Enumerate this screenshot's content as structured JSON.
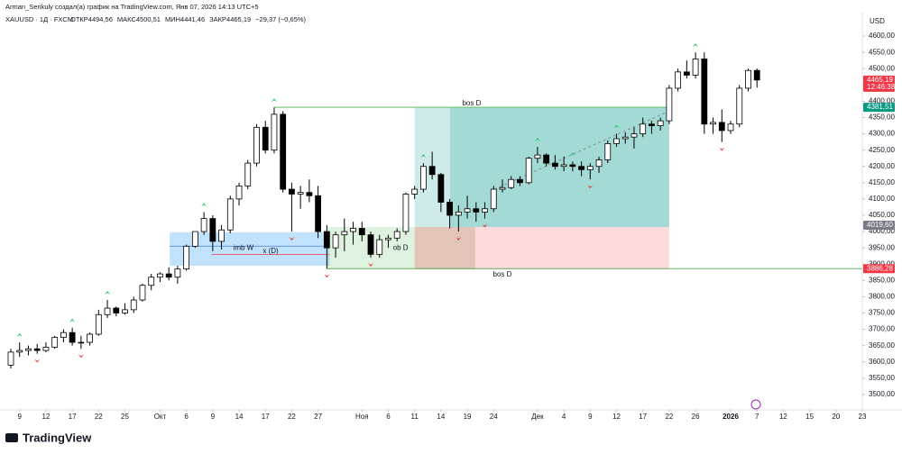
{
  "chart_data": {
    "type": "candlestick",
    "author_line": "Arman_Serikuly создал(а) график на TradingView.com, Янв 07, 2026 14:13 UTC+5",
    "symbol_line": "XAUUSD · 1Д · FXCM",
    "ohlc_line": [
      "ОТКР4494,56",
      "МАКС4500,51",
      "МИН4441,46",
      "ЗАКР4465,19",
      "−29,37 (−0,65%)"
    ],
    "currency": "USD",
    "brand": "TradingView",
    "open": [
      3590,
      3630,
      3635,
      3640,
      3635,
      3645,
      3675,
      3690,
      3660,
      3660,
      3685,
      3745,
      3765,
      3750,
      3760,
      3790,
      3835,
      3860,
      3870,
      3860,
      3885,
      3955,
      4000,
      4040,
      3970,
      4005,
      4100,
      4140,
      4210,
      4320,
      4250,
      4360,
      4130,
      4115,
      4120,
      4110,
      4000,
      3950,
      3990,
      4000,
      4010,
      3990,
      3930,
      3975,
      3980,
      4000,
      4115,
      4130,
      4200,
      4175,
      4090,
      4050,
      4060,
      4070,
      4060,
      4070,
      4130,
      4135,
      4160,
      4150,
      4225,
      4235,
      4210,
      4200,
      4205,
      4200,
      4190,
      4200,
      4220,
      4270,
      4285,
      4290,
      4300,
      4330,
      4325,
      4340,
      4440,
      4490,
      4480,
      4530,
      4330,
      4335,
      4310,
      4330,
      4440,
      4494.56
    ],
    "high": [
      3640,
      3660,
      3650,
      3655,
      3660,
      3680,
      3700,
      3705,
      3680,
      3690,
      3760,
      3790,
      3770,
      3780,
      3800,
      3840,
      3870,
      3875,
      3890,
      3895,
      3960,
      4000,
      4060,
      4050,
      4020,
      4110,
      4150,
      4220,
      4330,
      4340,
      4381,
      4370,
      4150,
      4140,
      4160,
      4140,
      4020,
      4000,
      4040,
      4030,
      4030,
      4000,
      3990,
      3990,
      4010,
      4120,
      4140,
      4210,
      4245,
      4180,
      4100,
      4080,
      4110,
      4090,
      4090,
      4140,
      4160,
      4170,
      4170,
      4230,
      4260,
      4240,
      4235,
      4230,
      4215,
      4215,
      4210,
      4230,
      4280,
      4300,
      4305,
      4320,
      4350,
      4340,
      4350,
      4450,
      4500,
      4525,
      4550,
      4550,
      4350,
      4375,
      4340,
      4450,
      4500,
      4500.51
    ],
    "low": [
      3580,
      3615,
      3620,
      3625,
      3630,
      3640,
      3660,
      3650,
      3640,
      3650,
      3680,
      3735,
      3740,
      3745,
      3750,
      3785,
      3820,
      3845,
      3850,
      3840,
      3880,
      3950,
      3990,
      3940,
      3945,
      3995,
      4080,
      4130,
      4200,
      4240,
      4240,
      4120,
      4000,
      4070,
      4090,
      3980,
      3886,
      3920,
      3940,
      3960,
      3970,
      3920,
      3920,
      3950,
      3970,
      3990,
      4100,
      4120,
      4160,
      4060,
      4010,
      4000,
      4040,
      4030,
      4040,
      4060,
      4120,
      4130,
      4140,
      4145,
      4210,
      4200,
      4190,
      4185,
      4185,
      4170,
      4160,
      4180,
      4210,
      4260,
      4270,
      4255,
      4290,
      4300,
      4310,
      4330,
      4430,
      4470,
      4470,
      4300,
      4300,
      4275,
      4300,
      4320,
      4430,
      4441.46
    ],
    "close": [
      3630,
      3635,
      3640,
      3635,
      3645,
      3675,
      3690,
      3660,
      3660,
      3685,
      3745,
      3765,
      3750,
      3760,
      3790,
      3835,
      3860,
      3870,
      3860,
      3885,
      3955,
      4000,
      4040,
      3970,
      4005,
      4100,
      4140,
      4210,
      4320,
      4250,
      4360,
      4130,
      4115,
      4120,
      4110,
      4000,
      3950,
      3990,
      4000,
      4010,
      3990,
      3930,
      3975,
      3980,
      4000,
      4115,
      4130,
      4200,
      4175,
      4090,
      4050,
      4060,
      4070,
      4060,
      4070,
      4130,
      4135,
      4160,
      4150,
      4225,
      4235,
      4210,
      4200,
      4205,
      4200,
      4190,
      4200,
      4220,
      4270,
      4285,
      4290,
      4300,
      4330,
      4325,
      4340,
      4440,
      4490,
      4480,
      4530,
      4330,
      4335,
      4310,
      4330,
      4440,
      4494.56,
      4465.19
    ],
    "up_color": "#ffffff",
    "down_color": "#000000",
    "xlim": [
      -1.233,
      97
    ],
    "ylim": [
      3461,
      4661
    ],
    "xticks": [
      {
        "value": 1,
        "label": "9"
      },
      {
        "value": 4,
        "label": "12"
      },
      {
        "value": 7,
        "label": "17"
      },
      {
        "value": 10,
        "label": "22"
      },
      {
        "value": 13,
        "label": "25"
      },
      {
        "value": 17,
        "label": "Окт"
      },
      {
        "value": 20,
        "label": "6"
      },
      {
        "value": 23,
        "label": "9"
      },
      {
        "value": 26,
        "label": "14"
      },
      {
        "value": 29,
        "label": "17"
      },
      {
        "value": 32,
        "label": "22"
      },
      {
        "value": 35,
        "label": "27"
      },
      {
        "value": 40,
        "label": "Ноя"
      },
      {
        "value": 43,
        "label": "6"
      },
      {
        "value": 46,
        "label": "11"
      },
      {
        "value": 49,
        "label": "14"
      },
      {
        "value": 52,
        "label": "19"
      },
      {
        "value": 55,
        "label": "24"
      },
      {
        "value": 60,
        "label": "Дек"
      },
      {
        "value": 63,
        "label": "4"
      },
      {
        "value": 66,
        "label": "9"
      },
      {
        "value": 69,
        "label": "12"
      },
      {
        "value": 72,
        "label": "17"
      },
      {
        "value": 75,
        "label": "22"
      },
      {
        "value": 78,
        "label": "26"
      },
      {
        "value": 82,
        "label": "2026"
      },
      {
        "value": 85,
        "label": "7"
      },
      {
        "value": 88,
        "label": "12"
      },
      {
        "value": 91,
        "label": "15"
      },
      {
        "value": 94,
        "label": "20"
      },
      {
        "value": 97,
        "label": "23"
      }
    ],
    "yticks": [
      {
        "value": 3500,
        "label": "3500,00"
      },
      {
        "value": 3550,
        "label": "3550,00"
      },
      {
        "value": 3600,
        "label": "3600,00"
      },
      {
        "value": 3650,
        "label": "3650,00"
      },
      {
        "value": 3700,
        "label": "3700,00"
      },
      {
        "value": 3750,
        "label": "3750,00"
      },
      {
        "value": 3800,
        "label": "3800,00"
      },
      {
        "value": 3850,
        "label": "3850,00"
      },
      {
        "value": 3900,
        "label": "3900,00"
      },
      {
        "value": 3950,
        "label": "3950,00"
      },
      {
        "value": 4000,
        "label": "4000,00"
      },
      {
        "value": 4050,
        "label": "4050,00"
      },
      {
        "value": 4100,
        "label": "4100,00"
      },
      {
        "value": 4150,
        "label": "4150,00"
      },
      {
        "value": 4200,
        "label": "4200,00"
      },
      {
        "value": 4250,
        "label": "4250,00"
      },
      {
        "value": 4300,
        "label": "4300,00"
      },
      {
        "value": 4350,
        "label": "4350,00"
      },
      {
        "value": 4400,
        "label": "4400,00"
      },
      {
        "value": 4450,
        "label": "4450,00"
      },
      {
        "value": 4500,
        "label": "4500,00"
      },
      {
        "value": 4550,
        "label": "4550,00"
      },
      {
        "value": 4600,
        "label": "4600,00"
      }
    ],
    "grid": false,
    "zones": [
      {
        "x": [
          18.1,
          36.3
        ],
        "y": [
          3895,
          3998
        ],
        "color": "rgba(33,150,243,0.28)"
      },
      {
        "x": [
          36.0,
          46.0
        ],
        "y": [
          3884,
          4014
        ],
        "color": "rgba(76,175,80,0.18)"
      },
      {
        "x": [
          46.0,
          50.05
        ],
        "y": [
          4014,
          4380
        ],
        "color": "rgba(38,166,154,0.22)"
      },
      {
        "x": [
          50.05,
          75.0
        ],
        "y": [
          4014,
          4380
        ],
        "color": "rgba(38,166,154,0.42)"
      },
      {
        "x": [
          46.0,
          75.0
        ],
        "y": [
          3884,
          4014
        ],
        "color": "rgba(242,54,69,0.18)"
      },
      {
        "x": [
          46.0,
          52.9
        ],
        "y": [
          3884,
          4014
        ],
        "color": "rgba(130,120,60,0.22)"
      }
    ],
    "lines": [
      {
        "x": [
          30,
          75
        ],
        "y": [
          4381.51,
          4381.51
        ],
        "color": "#4caf50",
        "dashed": false
      },
      {
        "x": [
          36,
          97
        ],
        "y": [
          3886.28,
          3886.28
        ],
        "color": "#4caf50",
        "dashed": false
      },
      {
        "x": [
          22.9,
          36.3
        ],
        "y": [
          3930,
          3930
        ],
        "color": "#f23645",
        "dashed": false
      },
      {
        "x": [
          18.1,
          36.3
        ],
        "y": [
          3955,
          3955
        ],
        "color": "#5b8fd6",
        "dashed": false
      },
      {
        "x": [
          55.1,
          74.6
        ],
        "y": [
          4130,
          4365
        ],
        "color": "#787b86",
        "dashed": true
      }
    ],
    "annotations": [
      {
        "text": "bos D",
        "x": 52.5,
        "y": 4393
      },
      {
        "text": "bos D",
        "x": 56.0,
        "y": 3868
      },
      {
        "text": "imb W",
        "x": 26.5,
        "y": 3950
      },
      {
        "text": "x (D)",
        "x": 29.6,
        "y": 3939
      },
      {
        "text": "ob D",
        "x": 44.4,
        "y": 3950
      }
    ],
    "up_signals": [
      1,
      7,
      11,
      22,
      30,
      47,
      60,
      64,
      69,
      78
    ],
    "down_signals": [
      3,
      8,
      32,
      36,
      41,
      51,
      54,
      66,
      81
    ],
    "up_signal_color": "#22c55e",
    "down_signal_color": "#e53935",
    "price_tags": [
      {
        "value": 4465.19,
        "label": "4465,19",
        "color": "#f23645",
        "sub": "12:46:38"
      },
      {
        "value": 4381.51,
        "label": "4381,51",
        "color": "#089981"
      },
      {
        "value": 4019.6,
        "label": "4019,60",
        "color": "#787b86"
      },
      {
        "value": 3886.28,
        "label": "3886,28",
        "color": "#f23645"
      }
    ]
  }
}
